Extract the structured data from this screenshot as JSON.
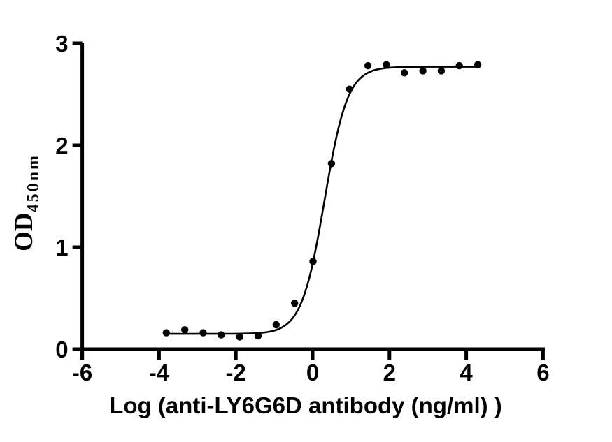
{
  "figure": {
    "background_color": "#ffffff",
    "ink_color": "#000000"
  },
  "chart_data": {
    "type": "scatter",
    "title": "",
    "xlabel": "Log (anti-LY6G6D antibody (ng/ml) )",
    "ylabel_main": "OD",
    "ylabel_sub": "450nm",
    "xlim": [
      -6,
      6
    ],
    "ylim": [
      0,
      3
    ],
    "grid": false,
    "legend": "none",
    "x_ticks": {
      "values": [
        -6,
        -4,
        -2,
        0,
        2,
        4,
        6
      ],
      "labels": [
        "-6",
        "-4",
        "-2",
        "0",
        "2",
        "4",
        "6"
      ]
    },
    "y_ticks": {
      "values": [
        0,
        1,
        2,
        3
      ],
      "labels": [
        "0",
        "1",
        "2",
        "3"
      ]
    },
    "points": {
      "x": [
        -3.81,
        -3.33,
        -2.85,
        -2.38,
        -1.9,
        -1.42,
        -0.95,
        -0.47,
        0.01,
        0.49,
        0.96,
        1.44,
        1.92,
        2.39,
        2.87,
        3.35,
        3.82,
        4.3
      ],
      "y": [
        0.16,
        0.19,
        0.16,
        0.14,
        0.12,
        0.13,
        0.24,
        0.45,
        0.86,
        1.82,
        2.55,
        2.78,
        2.79,
        2.71,
        2.73,
        2.73,
        2.78,
        2.79
      ]
    },
    "fit_curve": {
      "model": "four-parameter-logistic",
      "bottom": 0.15,
      "top": 2.77,
      "log_ec50": 0.31,
      "hill_slope": 1.45,
      "x_start": -3.81,
      "x_end": 4.3
    },
    "marker": {
      "shape": "circle",
      "radius_px": 5.2,
      "color": "#000000"
    }
  }
}
